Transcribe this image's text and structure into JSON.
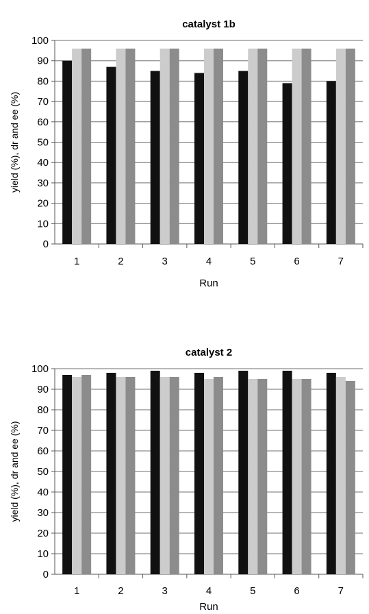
{
  "chart_data": [
    {
      "type": "bar",
      "title": "catalyst 1b",
      "xlabel": "Run",
      "ylabel": "yield (%), dr and ee (%)",
      "categories": [
        "1",
        "2",
        "3",
        "4",
        "5",
        "6",
        "7"
      ],
      "ylim": [
        0,
        100
      ],
      "yticks": [
        0,
        10,
        20,
        30,
        40,
        50,
        60,
        70,
        80,
        90,
        100
      ],
      "grid": true,
      "series": [
        {
          "values": [
            90,
            87,
            85,
            84,
            85,
            79,
            80
          ],
          "color": "#111111"
        },
        {
          "values": [
            96,
            96,
            96,
            96,
            96,
            96,
            96
          ],
          "color": "#cccccc"
        },
        {
          "values": [
            96,
            96,
            96,
            96,
            96,
            96,
            96
          ],
          "color": "#8c8c8c"
        }
      ]
    },
    {
      "type": "bar",
      "title": "catalyst 2",
      "xlabel": "Run",
      "ylabel": "yield (%), dr and ee (%)",
      "categories": [
        "1",
        "2",
        "3",
        "4",
        "5",
        "6",
        "7"
      ],
      "ylim": [
        0,
        100
      ],
      "yticks": [
        0,
        10,
        20,
        30,
        40,
        50,
        60,
        70,
        80,
        90,
        100
      ],
      "grid": true,
      "series": [
        {
          "values": [
            97,
            98,
            99,
            98,
            99,
            99,
            98
          ],
          "color": "#111111"
        },
        {
          "values": [
            96,
            96,
            96,
            95,
            95,
            95,
            96
          ],
          "color": "#cccccc"
        },
        {
          "values": [
            97,
            96,
            96,
            96,
            95,
            95,
            94
          ],
          "color": "#8c8c8c"
        }
      ]
    }
  ]
}
